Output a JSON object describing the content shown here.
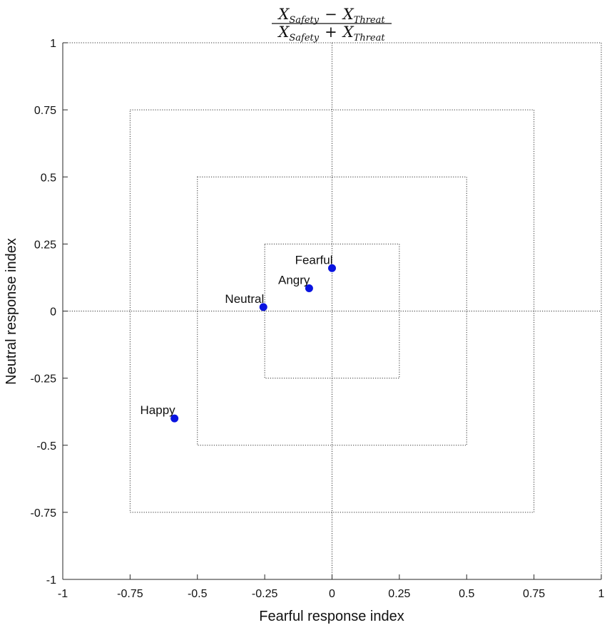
{
  "chart_data": {
    "type": "scatter",
    "title": {
      "numerator": {
        "a": "X",
        "a_sub": "Safety",
        "op": "−",
        "b": "X",
        "b_sub": "Threat"
      },
      "denominator": {
        "a": "X",
        "a_sub": "Safety",
        "op": "+",
        "b": "X",
        "b_sub": "Threat"
      }
    },
    "xlabel": "Fearful response index",
    "ylabel": "Neutral response index",
    "xlim": [
      -1,
      1
    ],
    "ylim": [
      -1,
      1
    ],
    "xticks": [
      -1,
      -0.75,
      -0.5,
      -0.25,
      0,
      0.25,
      0.5,
      0.75,
      1
    ],
    "yticks": [
      -1,
      -0.75,
      -0.5,
      -0.25,
      0,
      0.25,
      0.5,
      0.75,
      1
    ],
    "xtick_labels": [
      "-1",
      "-0.75",
      "-0.5",
      "-0.25",
      "0",
      "0.25",
      "0.5",
      "0.75",
      "1"
    ],
    "ytick_labels": [
      "-1",
      "-0.75",
      "-0.5",
      "-0.25",
      "0",
      "0.25",
      "0.5",
      "0.75",
      "1"
    ],
    "reference_squares": [
      0.25,
      0.5,
      0.75
    ],
    "reference_lines": {
      "x": 0,
      "y": 0
    },
    "grid": false,
    "marker_color": "#0a14e0",
    "points": [
      {
        "label": "Fearful",
        "x": 0.0,
        "y": 0.16
      },
      {
        "label": "Angry",
        "x": -0.085,
        "y": 0.085
      },
      {
        "label": "Neutral",
        "x": -0.255,
        "y": 0.015
      },
      {
        "label": "Happy",
        "x": -0.585,
        "y": -0.4
      }
    ]
  }
}
